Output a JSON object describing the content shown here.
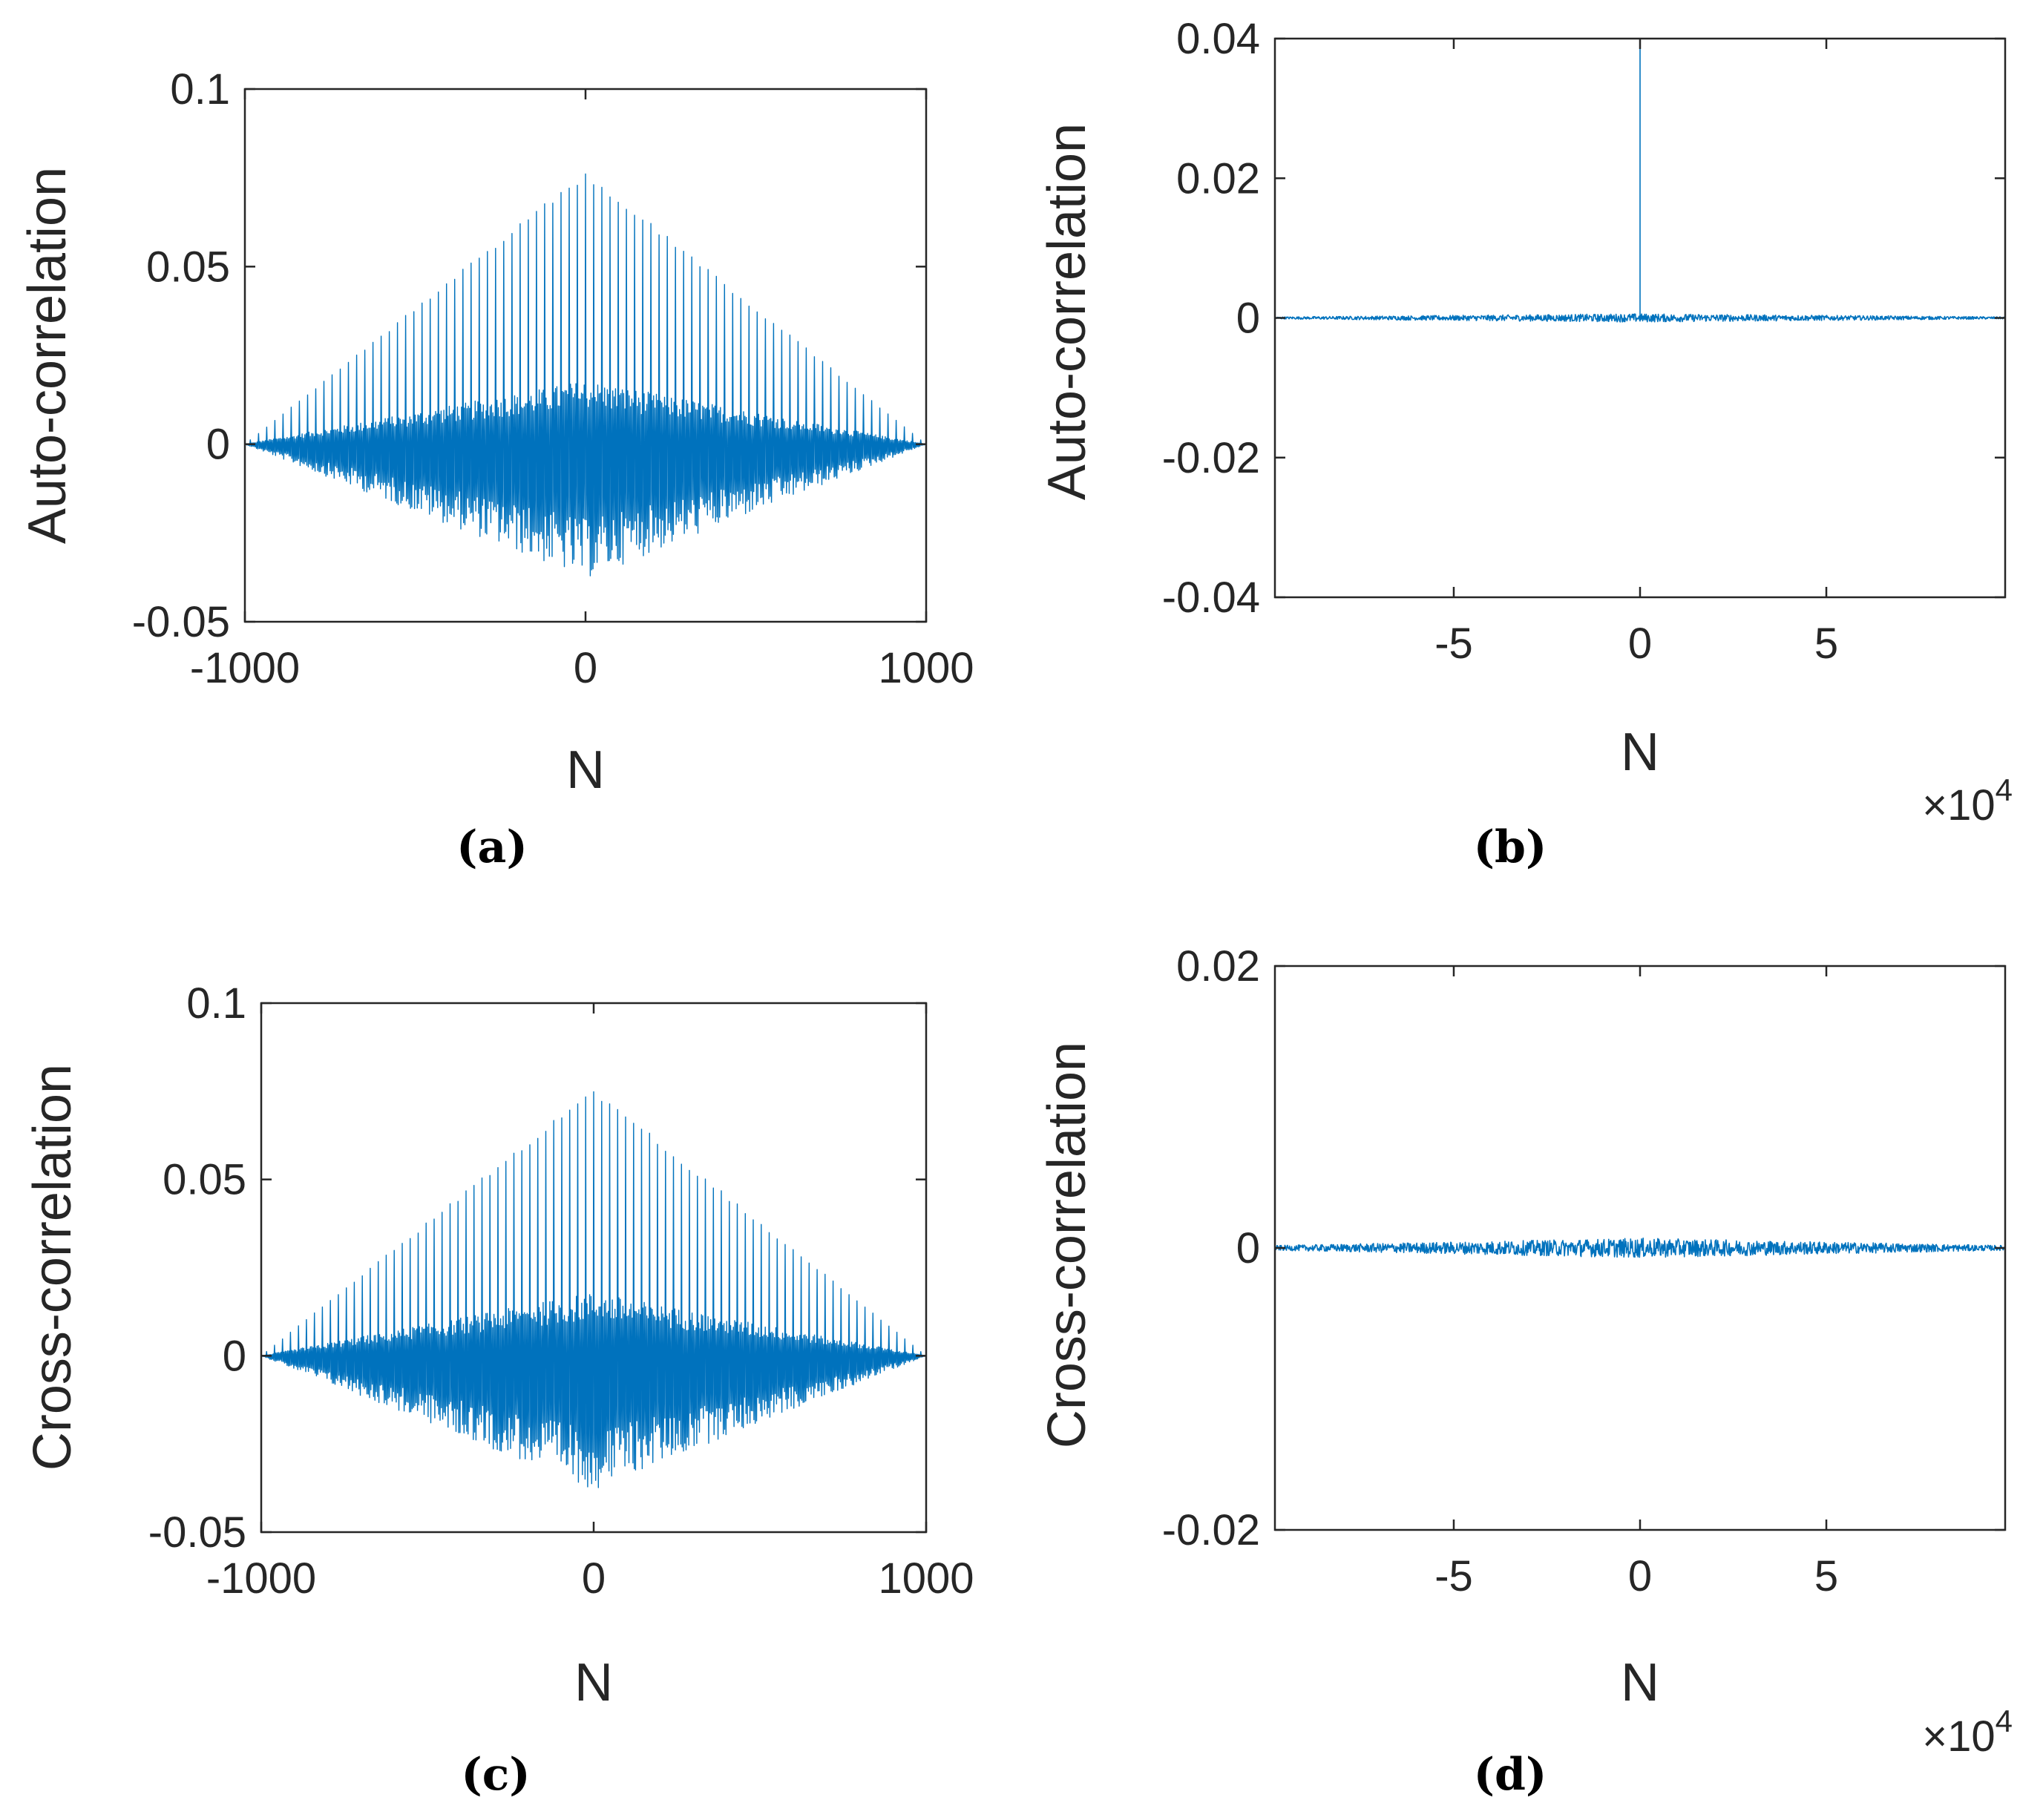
{
  "colors": {
    "series": "#0072BD",
    "axes": "#262626",
    "background": "#ffffff"
  },
  "chart_data": [
    {
      "id": "a",
      "type": "line",
      "caption": "(a)",
      "ylabel": "Auto-correlation",
      "xlabel": "N",
      "xlim": [
        -1000,
        1000
      ],
      "ylim": [
        -0.05,
        0.1
      ],
      "xticks": [
        -1000,
        0,
        1000
      ],
      "xtick_labels": [
        "-1000",
        "0",
        "1000"
      ],
      "yticks": [
        -0.05,
        0,
        0.05,
        0.1
      ],
      "ytick_labels": [
        "-0.05",
        "0",
        "0.05",
        "0.1"
      ],
      "exponent_label": "",
      "signal": {
        "form": "comb",
        "peak_max": 0.077,
        "upper_envelope": 0.018,
        "lower_envelope": -0.038,
        "comb_spacing": 24
      },
      "series": [
        {
          "name": "auto-correlation",
          "color": "#0072BD"
        }
      ]
    },
    {
      "id": "b",
      "type": "line",
      "caption": "(b)",
      "ylabel": "Auto-correlation",
      "xlabel": "N",
      "xlim": [
        -98000,
        98000
      ],
      "ylim": [
        -0.04,
        0.04
      ],
      "xticks": [
        -50000,
        0,
        50000
      ],
      "xtick_labels": [
        "-5",
        "0",
        "5"
      ],
      "yticks": [
        -0.04,
        -0.02,
        0,
        0.02,
        0.04
      ],
      "ytick_labels": [
        "-0.04",
        "-0.02",
        "0",
        "0.02",
        "0.04"
      ],
      "exponent_label": "×10",
      "exponent_power": "4",
      "signal": {
        "form": "spike",
        "spike_at": 0,
        "spike_height": 0.04,
        "noise": 0.0006
      },
      "series": [
        {
          "name": "auto-correlation",
          "color": "#0072BD"
        }
      ]
    },
    {
      "id": "c",
      "type": "line",
      "caption": "(c)",
      "ylabel": "Cross-correlation",
      "xlabel": "N",
      "xlim": [
        -1000,
        1000
      ],
      "ylim": [
        -0.05,
        0.1
      ],
      "xticks": [
        -1000,
        0,
        1000
      ],
      "xtick_labels": [
        "-1000",
        "0",
        "1000"
      ],
      "yticks": [
        -0.05,
        0,
        0.05,
        0.1
      ],
      "ytick_labels": [
        "-0.05",
        "0",
        "0.05",
        "0.1"
      ],
      "exponent_label": "",
      "signal": {
        "form": "comb",
        "peak_max": 0.076,
        "upper_envelope": 0.018,
        "lower_envelope": -0.038,
        "comb_spacing": 24
      },
      "series": [
        {
          "name": "cross-correlation",
          "color": "#0072BD"
        }
      ]
    },
    {
      "id": "d",
      "type": "line",
      "caption": "(d)",
      "ylabel": "Cross-correlation",
      "xlabel": "N",
      "xlim": [
        -98000,
        98000
      ],
      "ylim": [
        -0.02,
        0.02
      ],
      "xticks": [
        -50000,
        0,
        50000
      ],
      "xtick_labels": [
        "-5",
        "0",
        "5"
      ],
      "yticks": [
        -0.02,
        0,
        0.02
      ],
      "ytick_labels": [
        "-0.02",
        "0",
        "0.02"
      ],
      "exponent_label": "×10",
      "exponent_power": "4",
      "signal": {
        "form": "noise",
        "noise": 0.0007
      },
      "series": [
        {
          "name": "cross-correlation",
          "color": "#0072BD"
        }
      ]
    }
  ]
}
